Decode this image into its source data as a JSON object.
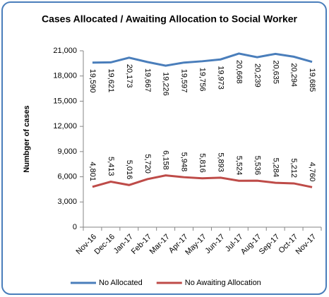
{
  "chart_data": {
    "type": "line",
    "title": "Cases Allocated / Awaiting Allocation to Social Worker",
    "y_label": "Numbger of cases",
    "categories": [
      "Nov-16",
      "Dec-16",
      "Jan-17",
      "Feb-17",
      "Mar-17",
      "Apr-17",
      "May-17",
      "Jun-17",
      "Jul-17",
      "Aug-17",
      "Sep-17",
      "Oct-17",
      "Nov-17"
    ],
    "series": [
      {
        "name": "No Allocated",
        "color": "#4a7ebb",
        "values": [
          19590,
          19621,
          20173,
          19667,
          19226,
          19597,
          19756,
          19973,
          20668,
          20239,
          20635,
          20294,
          19685
        ],
        "value_labels": [
          "19,590",
          "19,621",
          "20,173",
          "19,667",
          "19,226",
          "19,597",
          "19,756",
          "19,973",
          "20,668",
          "20,239",
          "20,635",
          "20,294",
          "19,685"
        ]
      },
      {
        "name": "No Awaiting Allocation",
        "color": "#be4b48",
        "values": [
          4801,
          5413,
          5016,
          5720,
          6158,
          5948,
          5816,
          5893,
          5524,
          5536,
          5284,
          5212,
          4760
        ],
        "value_labels": [
          "4,801",
          "5,413",
          "5,016",
          "5,720",
          "6,158",
          "5,948",
          "5,816",
          "5,893",
          "5,524",
          "5,536",
          "5,284",
          "5,212",
          "4,760"
        ]
      }
    ],
    "ylim": [
      0,
      21000
    ],
    "yticks": [
      0,
      {
        "value": 3000,
        "label": "3,000"
      },
      {
        "value": 6000,
        "label": "6,000"
      },
      {
        "value": 9000,
        "label": "9,000"
      },
      {
        "value": 12000,
        "label": "12,000"
      },
      {
        "value": 15000,
        "label": "15,000"
      },
      {
        "value": 18000,
        "label": "18,000"
      },
      {
        "value": 21000,
        "label": "21,000"
      }
    ],
    "grid": false,
    "legend": "bottom"
  }
}
